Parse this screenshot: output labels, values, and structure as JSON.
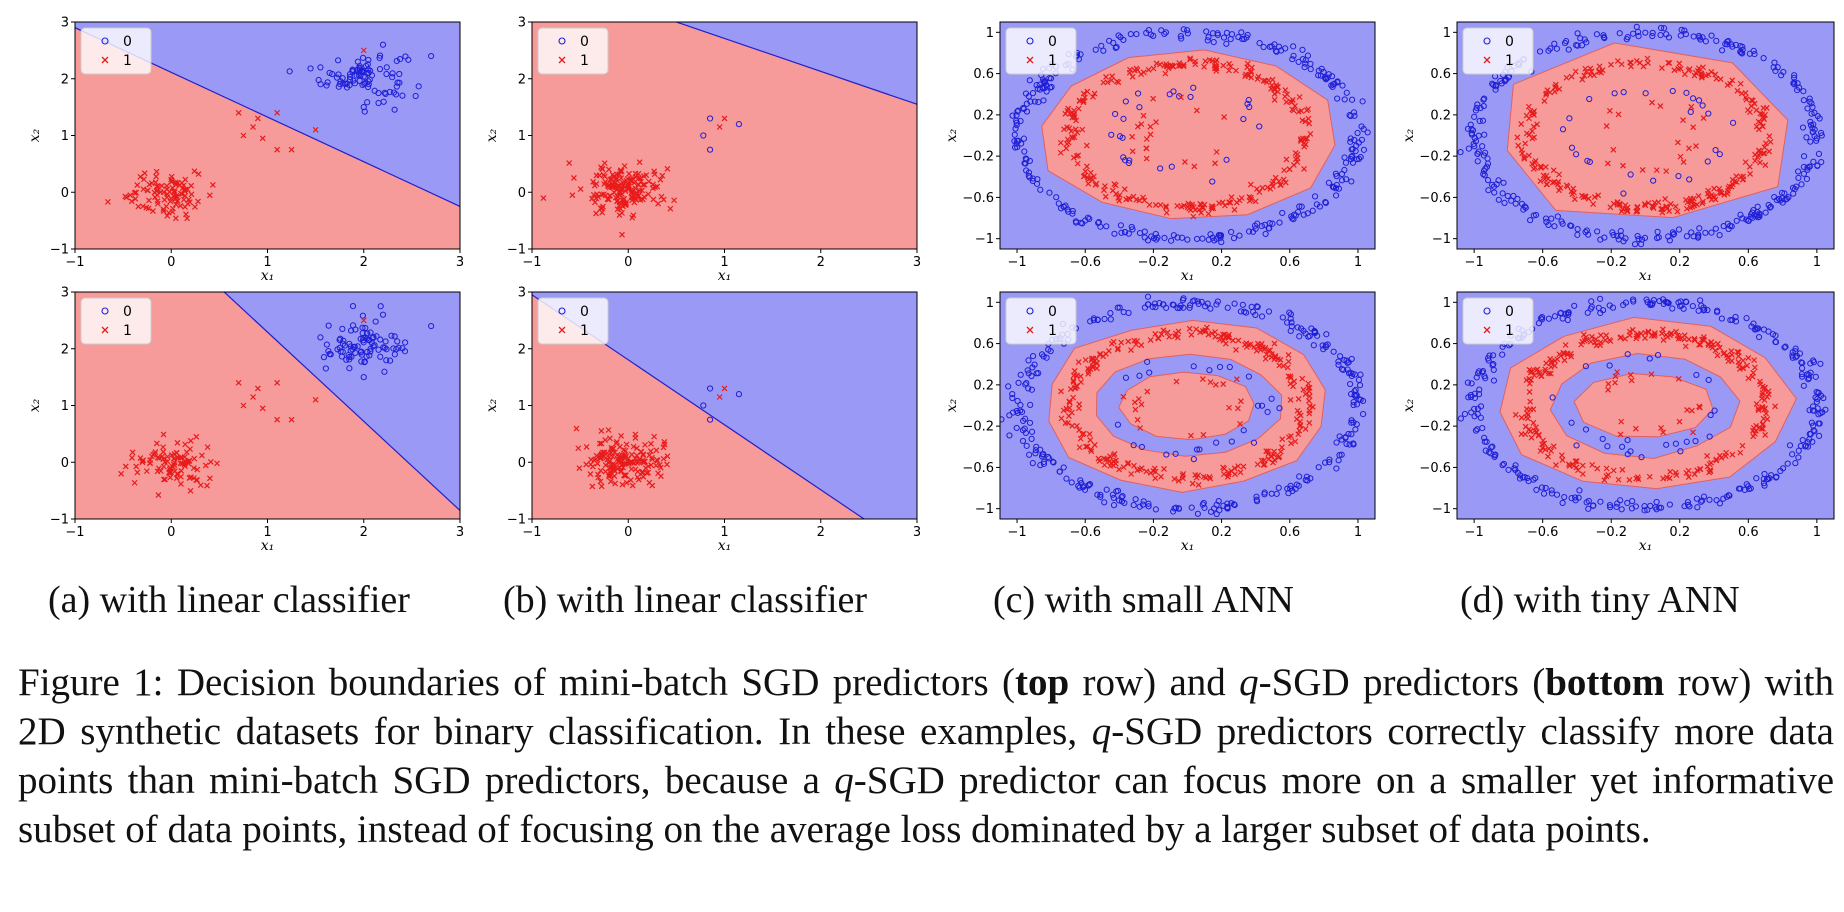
{
  "legend_labels": [
    "0",
    "1"
  ],
  "colors": {
    "region_class0": "#9a9af6",
    "region_class1": "#f69a9a",
    "points_class0": "#1f1fd6",
    "points_class1": "#e81b1b",
    "boundary_linear": "#2020cc",
    "boundary_ann": "#e06060"
  },
  "subcaptions": {
    "a": "(a) with linear classifier",
    "b": "(b) with linear classifier",
    "c": "(c) with small ANN",
    "d": "(d) with tiny ANN"
  },
  "caption": {
    "t1": "Figure 1:  Decision boundaries of mini-batch SGD predictors (",
    "b1": "top",
    "t2": " row) and ",
    "q1": "q",
    "t3": "-SGD predictors (",
    "b2": "bottom",
    "t4": " row) with 2D synthetic datasets for binary classification. In these examples, ",
    "q2": "q",
    "t5": "-SGD predictors correctly classify more data points than mini-batch SGD predictors, because a ",
    "q3": "q",
    "t6": "-SGD predictor can focus more on a smaller yet informative subset of data points, instead of focusing on the average loss dominated by a larger subset of data points."
  },
  "chart_data": [
    {
      "id": "a-top",
      "type": "scatter",
      "row": "top",
      "xlabel": "x₁",
      "ylabel": "x₂",
      "xlim": [
        -1,
        3
      ],
      "ylim": [
        -1,
        3
      ],
      "xticks": [
        -1,
        0,
        1,
        2,
        3
      ],
      "yticks": [
        -1,
        0,
        1,
        2,
        3
      ],
      "series": [
        {
          "name": "0",
          "marker": "o",
          "clusters": [
            {
              "center": [
                2.0,
                2.05
              ],
              "spread": [
                0.22,
                0.22
              ],
              "count": 90
            }
          ],
          "extra_points": [
            [
              2.7,
              2.4
            ],
            [
              1.55,
              2.2
            ],
            [
              2.0,
              1.5
            ],
            [
              2.2,
              2.6
            ]
          ]
        },
        {
          "name": "1",
          "marker": "x",
          "clusters": [
            {
              "center": [
                0.0,
                -0.05
              ],
              "spread": [
                0.2,
                0.2
              ],
              "count": 100
            }
          ],
          "extra_points": [
            [
              0.7,
              1.4
            ],
            [
              0.9,
              1.3
            ],
            [
              1.1,
              1.4
            ],
            [
              0.75,
              1.0
            ],
            [
              0.95,
              0.95
            ],
            [
              1.1,
              0.75
            ],
            [
              1.25,
              0.75
            ],
            [
              1.5,
              1.1
            ],
            [
              0.85,
              1.15
            ],
            [
              2.0,
              2.5
            ]
          ]
        }
      ],
      "boundary": {
        "kind": "line",
        "points": [
          [
            -1,
            2.9
          ],
          [
            3,
            -0.25
          ]
        ],
        "class0_side": "above"
      }
    },
    {
      "id": "b-top",
      "type": "scatter",
      "row": "top",
      "xlabel": "x₁",
      "ylabel": "x₂",
      "xlim": [
        -1,
        3
      ],
      "ylim": [
        -1,
        3
      ],
      "xticks": [
        -1,
        0,
        1,
        2,
        3
      ],
      "yticks": [
        -1,
        0,
        1,
        2,
        3
      ],
      "series": [
        {
          "name": "0",
          "marker": "o",
          "clusters": [],
          "extra_points": [
            [
              0.85,
              1.3
            ],
            [
              0.78,
              1.0
            ],
            [
              0.85,
              0.75
            ],
            [
              1.15,
              1.2
            ]
          ]
        },
        {
          "name": "1",
          "marker": "x",
          "clusters": [
            {
              "center": [
                -0.05,
                0.05
              ],
              "spread": [
                0.22,
                0.22
              ],
              "count": 170
            }
          ],
          "extra_points": [
            [
              0.95,
              1.15
            ],
            [
              1.0,
              1.3
            ]
          ]
        }
      ],
      "boundary": {
        "kind": "line",
        "points": [
          [
            0.5,
            3.0
          ],
          [
            3,
            1.55
          ]
        ],
        "class0_side": "above"
      }
    },
    {
      "id": "c-top",
      "type": "scatter",
      "row": "top",
      "xlabel": "x₁",
      "ylabel": "x₂",
      "xlim": [
        -1.1,
        1.1
      ],
      "ylim": [
        -1.1,
        1.1
      ],
      "xticks": [
        -1.0,
        -0.6,
        -0.2,
        0.2,
        0.6,
        1.0
      ],
      "yticks": [
        -1.0,
        -0.6,
        -0.2,
        0.2,
        0.6,
        1.0
      ],
      "series": [
        {
          "name": "0",
          "marker": "o",
          "rings": [
            {
              "r": 1.0,
              "noise": 0.03,
              "count": 300
            },
            {
              "r": 0.45,
              "noise": 0.05,
              "count": 26
            }
          ]
        },
        {
          "name": "1",
          "marker": "x",
          "rings": [
            {
              "r": 0.7,
              "noise": 0.03,
              "count": 260
            },
            {
              "r": 0.3,
              "noise": 0.05,
              "count": 20
            }
          ]
        }
      ],
      "boundary": {
        "kind": "polygons",
        "class1_regions": [
          {
            "rx": 0.86,
            "ry": 0.82,
            "wobble": 0.05,
            "sides": 12
          }
        ],
        "class0_regions": []
      }
    },
    {
      "id": "d-top",
      "type": "scatter",
      "row": "top",
      "xlabel": "x₁",
      "ylabel": "x₂",
      "xlim": [
        -1.1,
        1.1
      ],
      "ylim": [
        -1.1,
        1.1
      ],
      "xticks": [
        -1.0,
        -0.6,
        -0.2,
        0.2,
        0.6,
        1.0
      ],
      "yticks": [
        -1.0,
        -0.6,
        -0.2,
        0.2,
        0.6,
        1.0
      ],
      "series": [
        {
          "name": "0",
          "marker": "o",
          "rings": [
            {
              "r": 1.0,
              "noise": 0.03,
              "count": 300
            },
            {
              "r": 0.45,
              "noise": 0.05,
              "count": 26
            }
          ]
        },
        {
          "name": "1",
          "marker": "x",
          "rings": [
            {
              "r": 0.7,
              "noise": 0.03,
              "count": 260
            },
            {
              "r": 0.3,
              "noise": 0.05,
              "count": 20
            }
          ]
        }
      ],
      "boundary": {
        "kind": "polygons",
        "class1_regions": [
          {
            "rx": 0.9,
            "ry": 0.85,
            "wobble": 0.09,
            "sides": 8
          }
        ],
        "class0_regions": []
      }
    },
    {
      "id": "a-bottom",
      "type": "scatter",
      "row": "bottom",
      "xlabel": "x₁",
      "ylabel": "x₂",
      "xlim": [
        -1,
        3
      ],
      "ylim": [
        -1,
        3
      ],
      "xticks": [
        -1,
        0,
        1,
        2,
        3
      ],
      "yticks": [
        -1,
        0,
        1,
        2,
        3
      ],
      "series": [
        {
          "name": "0",
          "marker": "o",
          "clusters": [
            {
              "center": [
                2.0,
                2.05
              ],
              "spread": [
                0.22,
                0.22
              ],
              "count": 90
            }
          ],
          "extra_points": [
            [
              2.7,
              2.4
            ],
            [
              1.55,
              2.2
            ],
            [
              2.0,
              1.5
            ],
            [
              2.2,
              2.6
            ]
          ]
        },
        {
          "name": "1",
          "marker": "x",
          "clusters": [
            {
              "center": [
                0.0,
                -0.05
              ],
              "spread": [
                0.2,
                0.2
              ],
              "count": 100
            }
          ],
          "extra_points": [
            [
              0.7,
              1.4
            ],
            [
              0.9,
              1.3
            ],
            [
              1.1,
              1.4
            ],
            [
              0.75,
              1.0
            ],
            [
              0.95,
              0.95
            ],
            [
              1.1,
              0.75
            ],
            [
              1.25,
              0.75
            ],
            [
              1.5,
              1.1
            ],
            [
              0.85,
              1.15
            ],
            [
              2.0,
              2.5
            ]
          ]
        }
      ],
      "boundary": {
        "kind": "line",
        "points": [
          [
            0.55,
            3.0
          ],
          [
            3,
            -0.85
          ]
        ],
        "class0_side": "above"
      }
    },
    {
      "id": "b-bottom",
      "type": "scatter",
      "row": "bottom",
      "xlabel": "x₁",
      "ylabel": "x₂",
      "xlim": [
        -1,
        3
      ],
      "ylim": [
        -1,
        3
      ],
      "xticks": [
        -1,
        0,
        1,
        2,
        3
      ],
      "yticks": [
        -1,
        0,
        1,
        2,
        3
      ],
      "series": [
        {
          "name": "0",
          "marker": "o",
          "clusters": [],
          "extra_points": [
            [
              0.85,
              1.3
            ],
            [
              0.78,
              1.0
            ],
            [
              0.85,
              0.75
            ],
            [
              1.15,
              1.2
            ]
          ]
        },
        {
          "name": "1",
          "marker": "x",
          "clusters": [
            {
              "center": [
                -0.05,
                0.05
              ],
              "spread": [
                0.22,
                0.22
              ],
              "count": 170
            }
          ],
          "extra_points": [
            [
              0.95,
              1.15
            ],
            [
              1.0,
              1.3
            ]
          ]
        }
      ],
      "boundary": {
        "kind": "line",
        "points": [
          [
            -1,
            2.95
          ],
          [
            2.45,
            -1.0
          ]
        ],
        "class0_side": "above"
      }
    },
    {
      "id": "c-bottom",
      "type": "scatter",
      "row": "bottom",
      "xlabel": "x₁",
      "ylabel": "x₂",
      "xlim": [
        -1.1,
        1.1
      ],
      "ylim": [
        -1.1,
        1.1
      ],
      "xticks": [
        -1.0,
        -0.6,
        -0.2,
        0.2,
        0.6,
        1.0
      ],
      "yticks": [
        -1.0,
        -0.6,
        -0.2,
        0.2,
        0.6,
        1.0
      ],
      "series": [
        {
          "name": "0",
          "marker": "o",
          "rings": [
            {
              "r": 1.0,
              "noise": 0.03,
              "count": 300
            },
            {
              "r": 0.45,
              "noise": 0.05,
              "count": 26
            }
          ]
        },
        {
          "name": "1",
          "marker": "x",
          "rings": [
            {
              "r": 0.7,
              "noise": 0.03,
              "count": 260
            },
            {
              "r": 0.3,
              "noise": 0.05,
              "count": 20
            }
          ]
        }
      ],
      "boundary": {
        "kind": "polygons",
        "class1_regions": [
          {
            "rx": 0.84,
            "ry": 0.82,
            "wobble": 0.04,
            "sides": 14
          },
          {
            "rx": 0.4,
            "ry": 0.33,
            "wobble": 0.03,
            "sides": 12
          }
        ],
        "class0_regions": [
          {
            "rx": 0.55,
            "ry": 0.5,
            "wobble": 0.03,
            "sides": 14
          }
        ]
      }
    },
    {
      "id": "d-bottom",
      "type": "scatter",
      "row": "bottom",
      "xlabel": "x₁",
      "ylabel": "x₂",
      "xlim": [
        -1.1,
        1.1
      ],
      "ylim": [
        -1.1,
        1.1
      ],
      "xticks": [
        -1.0,
        -0.6,
        -0.2,
        0.2,
        0.6,
        1.0
      ],
      "yticks": [
        -1.0,
        -0.6,
        -0.2,
        0.2,
        0.6,
        1.0
      ],
      "series": [
        {
          "name": "0",
          "marker": "o",
          "rings": [
            {
              "r": 1.0,
              "noise": 0.03,
              "count": 300
            },
            {
              "r": 0.45,
              "noise": 0.05,
              "count": 26
            }
          ]
        },
        {
          "name": "1",
          "marker": "x",
          "rings": [
            {
              "r": 0.7,
              "noise": 0.03,
              "count": 260
            },
            {
              "r": 0.3,
              "noise": 0.05,
              "count": 20
            }
          ]
        }
      ],
      "boundary": {
        "kind": "polygons",
        "class1_regions": [
          {
            "rx": 0.86,
            "ry": 0.83,
            "wobble": 0.05,
            "sides": 12
          },
          {
            "rx": 0.4,
            "ry": 0.32,
            "wobble": 0.05,
            "sides": 10
          }
        ],
        "class0_regions": [
          {
            "rx": 0.55,
            "ry": 0.5,
            "wobble": 0.05,
            "sides": 12
          }
        ]
      }
    }
  ]
}
